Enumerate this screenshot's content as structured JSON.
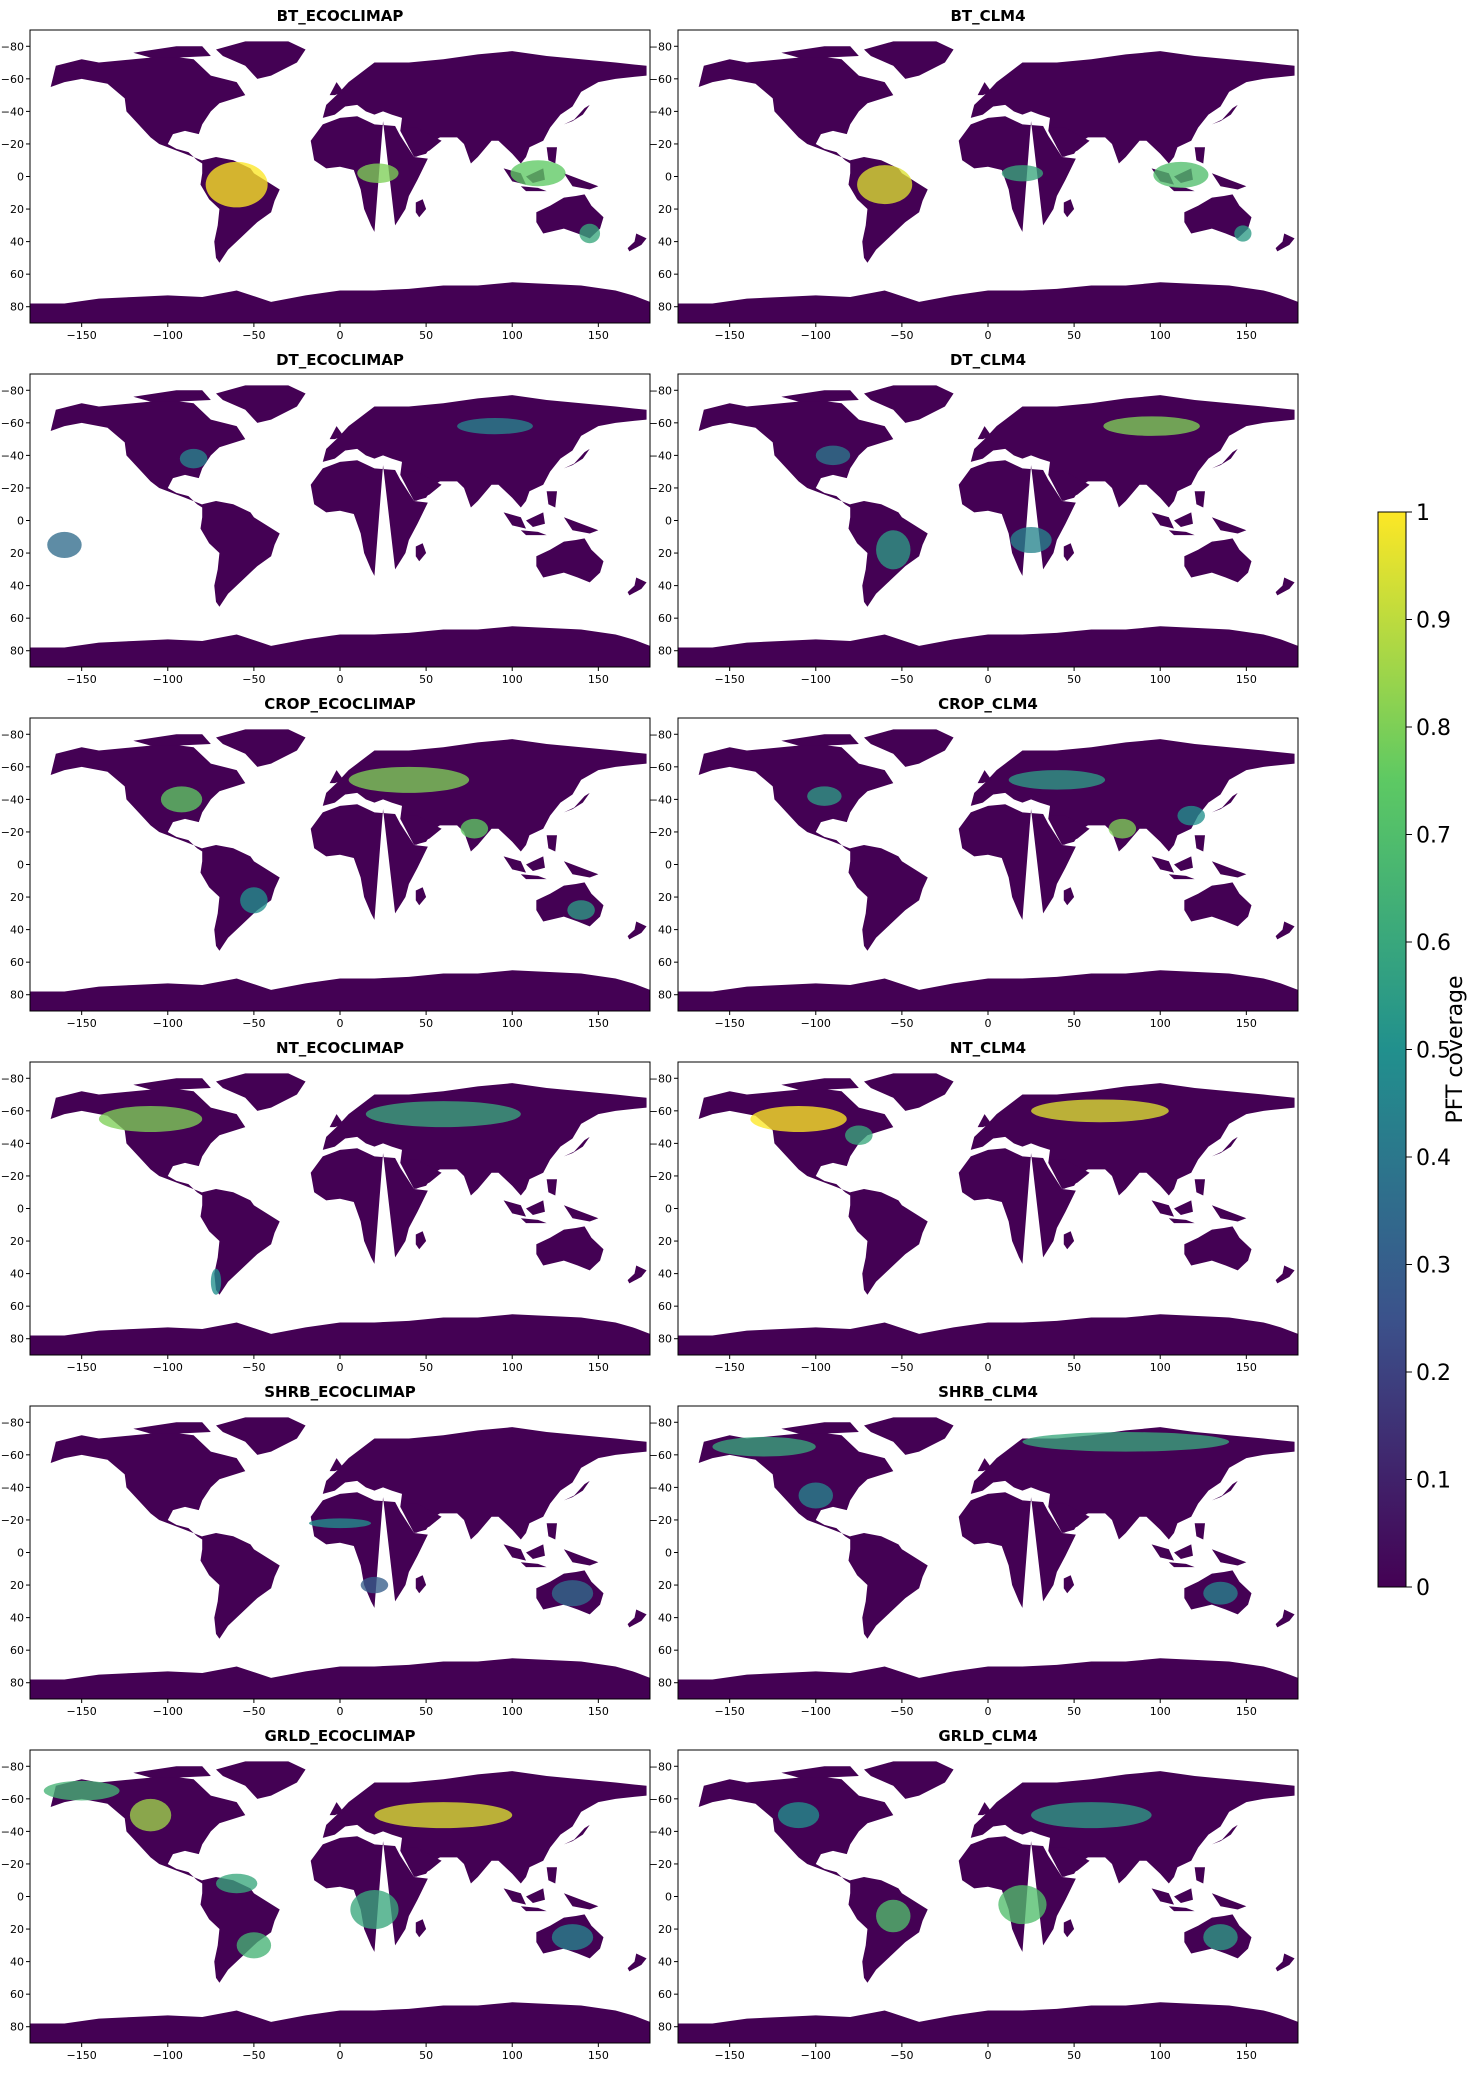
{
  "chart_data": {
    "type": "heatmap",
    "colormap": "viridis",
    "colormap_colors": [
      "#440154",
      "#3b528b",
      "#21908d",
      "#5dc963",
      "#fde725"
    ],
    "land_base_color": "#440154",
    "panels": [
      {
        "title": "BT_ECOCLIMAP",
        "pft": "BT"
      },
      {
        "title": "BT_CLM4",
        "pft": "BT"
      },
      {
        "title": "DT_ECOCLIMAP",
        "pft": "DT"
      },
      {
        "title": "DT_CLM4",
        "pft": "DT"
      },
      {
        "title": "CROP_ECOCLIMAP",
        "pft": "CROP"
      },
      {
        "title": "CROP_CLM4",
        "pft": "CROP"
      },
      {
        "title": "NT_ECOCLIMAP",
        "pft": "NT"
      },
      {
        "title": "NT_CLM4",
        "pft": "NT"
      },
      {
        "title": "SHRB_ECOCLIMAP",
        "pft": "SHRB"
      },
      {
        "title": "SHRB_CLM4",
        "pft": "SHRB"
      },
      {
        "title": "GRLD_ECOCLIMAP",
        "pft": "GRLD"
      },
      {
        "title": "GRLD_CLM4",
        "pft": "GRLD"
      }
    ],
    "x_ticks": [
      "−150",
      "−100",
      "−50",
      "0",
      "50",
      "100",
      "150"
    ],
    "x_tick_values": [
      -150,
      -100,
      -50,
      0,
      50,
      100,
      150
    ],
    "y_ticks": [
      "−80",
      "−60",
      "−40",
      "−20",
      "0",
      "20",
      "40",
      "60",
      "80"
    ],
    "y_tick_values": [
      -80,
      -60,
      -40,
      -20,
      0,
      20,
      40,
      60,
      80
    ],
    "xlim": [
      -180,
      180
    ],
    "ylim": [
      -90,
      90
    ],
    "colorbar": {
      "label": "PFT coverage",
      "range": [
        0,
        1
      ],
      "ticks": [
        "0",
        "0.1",
        "0.2",
        "0.3",
        "0.4",
        "0.5",
        "0.6",
        "0.7",
        "0.8",
        "0.9",
        "1"
      ],
      "tick_values": [
        0,
        0.1,
        0.2,
        0.3,
        0.4,
        0.5,
        0.6,
        0.7,
        0.8,
        0.9,
        1
      ]
    },
    "hotspots": {
      "BT_ECOCLIMAP": [
        [
          -60,
          5,
          18,
          14,
          1.0
        ],
        [
          22,
          -2,
          12,
          6,
          0.8
        ],
        [
          115,
          -2,
          16,
          8,
          0.75
        ],
        [
          145,
          35,
          6,
          6,
          0.6
        ]
      ],
      "BT_CLM4": [
        [
          -60,
          5,
          16,
          12,
          0.95
        ],
        [
          20,
          -2,
          12,
          5,
          0.6
        ],
        [
          112,
          -1,
          16,
          8,
          0.7
        ],
        [
          148,
          35,
          5,
          5,
          0.55
        ]
      ],
      "DT_ECOCLIMAP": [
        [
          -85,
          -38,
          8,
          6,
          0.45
        ],
        [
          90,
          -58,
          22,
          5,
          0.45
        ],
        [
          -160,
          15,
          10,
          8,
          0.35
        ]
      ],
      "DT_CLM4": [
        [
          95,
          -58,
          28,
          6,
          0.8
        ],
        [
          -55,
          18,
          10,
          12,
          0.55
        ],
        [
          25,
          12,
          12,
          8,
          0.45
        ],
        [
          -90,
          -40,
          10,
          6,
          0.4
        ]
      ],
      "CROP_ECOCLIMAP": [
        [
          -92,
          -40,
          12,
          8,
          0.75
        ],
        [
          40,
          -52,
          35,
          8,
          0.8
        ],
        [
          78,
          -22,
          8,
          6,
          0.75
        ],
        [
          -50,
          22,
          8,
          8,
          0.5
        ],
        [
          140,
          28,
          8,
          6,
          0.55
        ]
      ],
      "CROP_CLM4": [
        [
          -95,
          -42,
          10,
          6,
          0.55
        ],
        [
          40,
          -52,
          28,
          6,
          0.55
        ],
        [
          78,
          -22,
          8,
          6,
          0.8
        ],
        [
          118,
          -30,
          8,
          6,
          0.5
        ]
      ],
      "NT_ECOCLIMAP": [
        [
          -110,
          -55,
          30,
          8,
          0.8
        ],
        [
          60,
          -58,
          45,
          8,
          0.6
        ],
        [
          -72,
          45,
          3,
          8,
          0.5
        ]
      ],
      "NT_CLM4": [
        [
          -110,
          -55,
          28,
          8,
          1.0
        ],
        [
          65,
          -60,
          40,
          7,
          0.95
        ],
        [
          -75,
          -45,
          8,
          6,
          0.6
        ]
      ],
      "SHRB_ECOCLIMAP": [
        [
          0,
          -18,
          18,
          3,
          0.5
        ],
        [
          135,
          25,
          12,
          8,
          0.35
        ],
        [
          20,
          20,
          8,
          5,
          0.3
        ]
      ],
      "SHRB_CLM4": [
        [
          -130,
          -65,
          30,
          6,
          0.6
        ],
        [
          80,
          -68,
          60,
          6,
          0.6
        ],
        [
          135,
          25,
          10,
          7,
          0.45
        ],
        [
          -100,
          -35,
          10,
          8,
          0.45
        ]
      ],
      "GRLD_ECOCLIMAP": [
        [
          -150,
          -65,
          22,
          6,
          0.65
        ],
        [
          -110,
          -50,
          12,
          10,
          0.85
        ],
        [
          60,
          -50,
          40,
          8,
          0.95
        ],
        [
          -60,
          -8,
          12,
          6,
          0.6
        ],
        [
          20,
          8,
          14,
          12,
          0.6
        ],
        [
          -50,
          30,
          10,
          8,
          0.65
        ],
        [
          135,
          25,
          12,
          8,
          0.45
        ]
      ],
      "GRLD_CLM4": [
        [
          -55,
          12,
          10,
          10,
          0.7
        ],
        [
          20,
          5,
          14,
          12,
          0.7
        ],
        [
          60,
          -50,
          35,
          8,
          0.55
        ],
        [
          135,
          25,
          10,
          8,
          0.55
        ],
        [
          -110,
          -50,
          12,
          8,
          0.5
        ]
      ]
    }
  }
}
